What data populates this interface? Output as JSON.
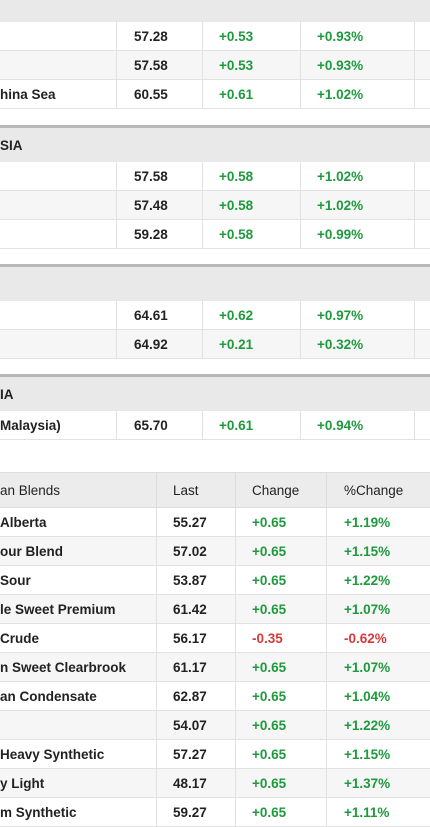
{
  "top_group": {
    "rows": [
      {
        "name": "",
        "last": "57.28",
        "change": "+0.53",
        "pct": "+0.93%"
      },
      {
        "name": "",
        "last": "57.58",
        "change": "+0.53",
        "pct": "+0.93%"
      },
      {
        "name": "hina Sea",
        "last": "60.55",
        "change": "+0.61",
        "pct": "+1.02%"
      }
    ]
  },
  "group2": {
    "label": "SIA",
    "rows": [
      {
        "name": "",
        "last": "57.58",
        "change": "+0.58",
        "pct": "+1.02%"
      },
      {
        "name": "",
        "last": "57.48",
        "change": "+0.58",
        "pct": "+1.02%"
      },
      {
        "name": "",
        "last": "59.28",
        "change": "+0.58",
        "pct": "+0.99%"
      }
    ]
  },
  "group3": {
    "label": "",
    "rows": [
      {
        "name": "",
        "last": "64.61",
        "change": "+0.62",
        "pct": "+0.97%"
      },
      {
        "name": "",
        "last": "64.92",
        "change": "+0.21",
        "pct": "+0.32%"
      }
    ]
  },
  "group4": {
    "label": "IA",
    "rows": [
      {
        "name": "Malaysia)",
        "last": "65.70",
        "change": "+0.61",
        "pct": "+0.94%"
      }
    ]
  },
  "canadian": {
    "headers": {
      "name": "an Blends",
      "last": "Last",
      "change": "Change",
      "pct": "%Change"
    },
    "rows": [
      {
        "name": "Alberta",
        "last": "55.27",
        "change": "+0.65",
        "pct": "+1.19%",
        "dir": "pos"
      },
      {
        "name": "our Blend",
        "last": "57.02",
        "change": "+0.65",
        "pct": "+1.15%",
        "dir": "pos"
      },
      {
        "name": "Sour",
        "last": "53.87",
        "change": "+0.65",
        "pct": "+1.22%",
        "dir": "pos"
      },
      {
        "name": "le Sweet Premium",
        "last": "61.42",
        "change": "+0.65",
        "pct": "+1.07%",
        "dir": "pos"
      },
      {
        "name": "Crude",
        "last": "56.17",
        "change": "-0.35",
        "pct": "-0.62%",
        "dir": "neg"
      },
      {
        "name": "n Sweet Clearbrook",
        "last": "61.17",
        "change": "+0.65",
        "pct": "+1.07%",
        "dir": "pos"
      },
      {
        "name": "an Condensate",
        "last": "62.87",
        "change": "+0.65",
        "pct": "+1.04%",
        "dir": "pos"
      },
      {
        "name": "",
        "last": "54.07",
        "change": "+0.65",
        "pct": "+1.22%",
        "dir": "pos"
      },
      {
        "name": "Heavy Synthetic",
        "last": "57.27",
        "change": "+0.65",
        "pct": "+1.15%",
        "dir": "pos"
      },
      {
        "name": "y Light",
        "last": "48.17",
        "change": "+0.65",
        "pct": "+1.37%",
        "dir": "pos"
      },
      {
        "name": "m Synthetic",
        "last": "59.27",
        "change": "+0.65",
        "pct": "+1.11%",
        "dir": "pos"
      }
    ]
  },
  "colors": {
    "positive": "#1e9a3d",
    "negative": "#d33a3a",
    "header_bg": "#e9e9e9"
  }
}
